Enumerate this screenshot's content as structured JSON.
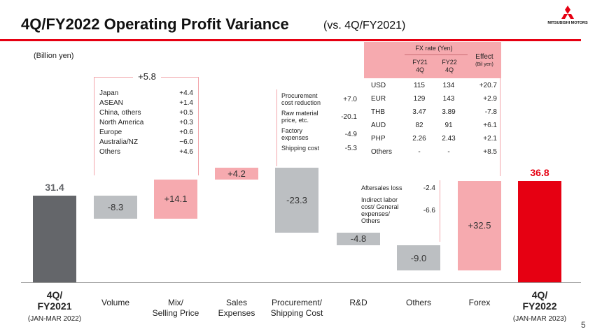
{
  "header": {
    "title": "4Q/FY2022 Operating Profit Variance",
    "subtitle": "(vs. 4Q/FY2021)",
    "logo_text": "MITSUBISHI MOTORS"
  },
  "unit_label": "(Billion yen)",
  "page_number": "5",
  "colors": {
    "accent": "#e60012",
    "pink": "#f6aaaf",
    "gray": "#bcbfc2",
    "dark": "#64666a"
  },
  "chart_data": {
    "type": "bar",
    "subtype": "waterfall",
    "title": "4Q/FY2022 Operating Profit Variance",
    "ylabel": "(Billion yen)",
    "start": {
      "value": 31.4,
      "label": "31.4"
    },
    "end": {
      "value": 36.8,
      "label": "36.8"
    },
    "steps": [
      {
        "category": "Volume",
        "value": -8.3,
        "label": "-8.3"
      },
      {
        "category": "Mix/ Selling Price",
        "value": 14.1,
        "label": "+14.1"
      },
      {
        "category": "Sales Expenses",
        "value": 4.2,
        "label": "+4.2"
      },
      {
        "category": "Procurement/ Shipping Cost",
        "value": -23.3,
        "label": "-23.3"
      },
      {
        "category": "R&D",
        "value": -4.8,
        "label": "-4.8"
      },
      {
        "category": "Others",
        "value": -9.0,
        "label": "-9.0"
      },
      {
        "category": "Forex",
        "value": 32.5,
        "label": "+32.5"
      }
    ],
    "categories": [
      {
        "line1": "4Q/",
        "line2": "FY2021",
        "line3": "(JAN-MAR 2022)"
      },
      {
        "line1": "Volume",
        "line2": "",
        "line3": ""
      },
      {
        "line1": "Mix/",
        "line2": "Selling Price",
        "line3": ""
      },
      {
        "line1": "Sales",
        "line2": "Expenses",
        "line3": ""
      },
      {
        "line1": "Procurement/",
        "line2": "Shipping Cost",
        "line3": ""
      },
      {
        "line1": "R&D",
        "line2": "",
        "line3": ""
      },
      {
        "line1": "Others",
        "line2": "",
        "line3": ""
      },
      {
        "line1": "Forex",
        "line2": "",
        "line3": ""
      },
      {
        "line1": "4Q/",
        "line2": "FY2022",
        "line3": "(JAN-MAR 2023)"
      }
    ],
    "annotations": {
      "volume_mix_total": "+5.8",
      "regions": [
        {
          "label": "Japan",
          "value": "+4.4"
        },
        {
          "label": "ASEAN",
          "value": "+1.4"
        },
        {
          "label": "China, others",
          "value": "+0.5"
        },
        {
          "label": "North America",
          "value": "+0.3"
        },
        {
          "label": "Europe",
          "value": "+0.6"
        },
        {
          "label": "Australia/NZ",
          "value": "−6.0"
        },
        {
          "label": "Others",
          "value": "+4.6"
        }
      ],
      "procurement": [
        {
          "line1": "Procurement",
          "line2": "cost reduction",
          "line3": "",
          "value": "+7.0"
        },
        {
          "line1": "Raw material",
          "line2": "price, etc.",
          "line3": "",
          "value": "-20.1"
        },
        {
          "line1": "Factory",
          "line2": "expenses",
          "line3": "",
          "value": "-4.9"
        },
        {
          "line1": "Shipping cost",
          "line2": "",
          "line3": "",
          "value": "-5.3"
        }
      ],
      "others": [
        {
          "line1": "Aftersales loss",
          "line2": "",
          "line3": "",
          "line4": "",
          "value": "-2.4"
        },
        {
          "line1": "Indirect labor",
          "line2": "cost/ General",
          "line3": "expenses/",
          "line4": "Others",
          "value": "-6.6"
        }
      ]
    },
    "fx_table": {
      "header": "FX rate (Yen)",
      "col1_line1": "FY21",
      "col1_line2": "4Q",
      "col2_line1": "FY22",
      "col2_line2": "4Q",
      "effect_label": "Effect",
      "effect_unit": "(Bil yen)",
      "rows": [
        {
          "currency": "USD",
          "fy21": "115",
          "fy22": "134",
          "effect": "+20.7"
        },
        {
          "currency": "EUR",
          "fy21": "129",
          "fy22": "143",
          "effect": "+2.9"
        },
        {
          "currency": "THB",
          "fy21": "3.47",
          "fy22": "3.89",
          "effect": "-7.8"
        },
        {
          "currency": "AUD",
          "fy21": "82",
          "fy22": "91",
          "effect": "+6.1"
        },
        {
          "currency": "PHP",
          "fy21": "2.26",
          "fy22": "2.43",
          "effect": "+2.1"
        },
        {
          "currency": "Others",
          "fy21": "-",
          "fy22": "-",
          "effect": "+8.5"
        }
      ]
    }
  }
}
